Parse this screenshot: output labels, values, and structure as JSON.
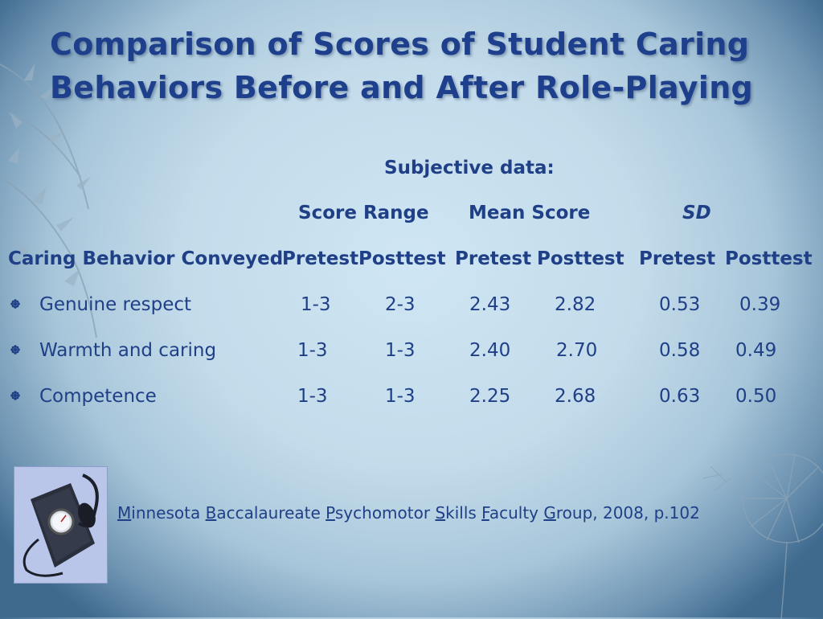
{
  "slide": {
    "title_line1": "Comparison of Scores of Student Caring",
    "title_line2": "Behaviors Before and After Role-Playing"
  },
  "table": {
    "caption": "Subjective data:",
    "group_headers": {
      "score_range": "Score Range",
      "mean_score": "Mean Score",
      "sd": "SD"
    },
    "column_headers": {
      "behavior": "Caring Behavior Conveyed",
      "range_pre": "Pretest",
      "range_post": "Posttest",
      "mean_pre": "Pretest",
      "mean_post": "Posttest",
      "sd_pre": "Pretest",
      "sd_post": "Posttest"
    },
    "rows": [
      {
        "behavior": "Genuine respect",
        "range_pre": "1-3",
        "range_post": "2-3",
        "mean_pre": "2.43",
        "mean_post": "2.82",
        "sd_pre": "0.53",
        "sd_post": "0.39"
      },
      {
        "behavior": "Warmth and caring",
        "range_pre": "1-3",
        "range_post": "1-3",
        "mean_pre": "2.40",
        "mean_post": "2.70",
        "sd_pre": "0.58",
        "sd_post": "0.49"
      },
      {
        "behavior": "Competence",
        "range_pre": "1-3",
        "range_post": "1-3",
        "mean_pre": "2.25",
        "mean_post": "2.68",
        "sd_pre": "0.63",
        "sd_post": "0.50"
      }
    ]
  },
  "citation": {
    "p1_first": "M",
    "p1_rest": "innesota ",
    "p2_first": "B",
    "p2_rest": "accalaureate ",
    "p3_first": "P",
    "p3_rest": "sychomotor ",
    "p4_first": "S",
    "p4_rest": "kills ",
    "p5_first": "F",
    "p5_rest": "aculty ",
    "p6_first": "G",
    "p6_rest": "roup, 2008, p.102"
  },
  "icons": {
    "photo": "blood-pressure-cuff-image",
    "bullet": "flower-bullet-icon"
  },
  "colors": {
    "text": "#1f3f86",
    "title": "#1d3f8c"
  }
}
